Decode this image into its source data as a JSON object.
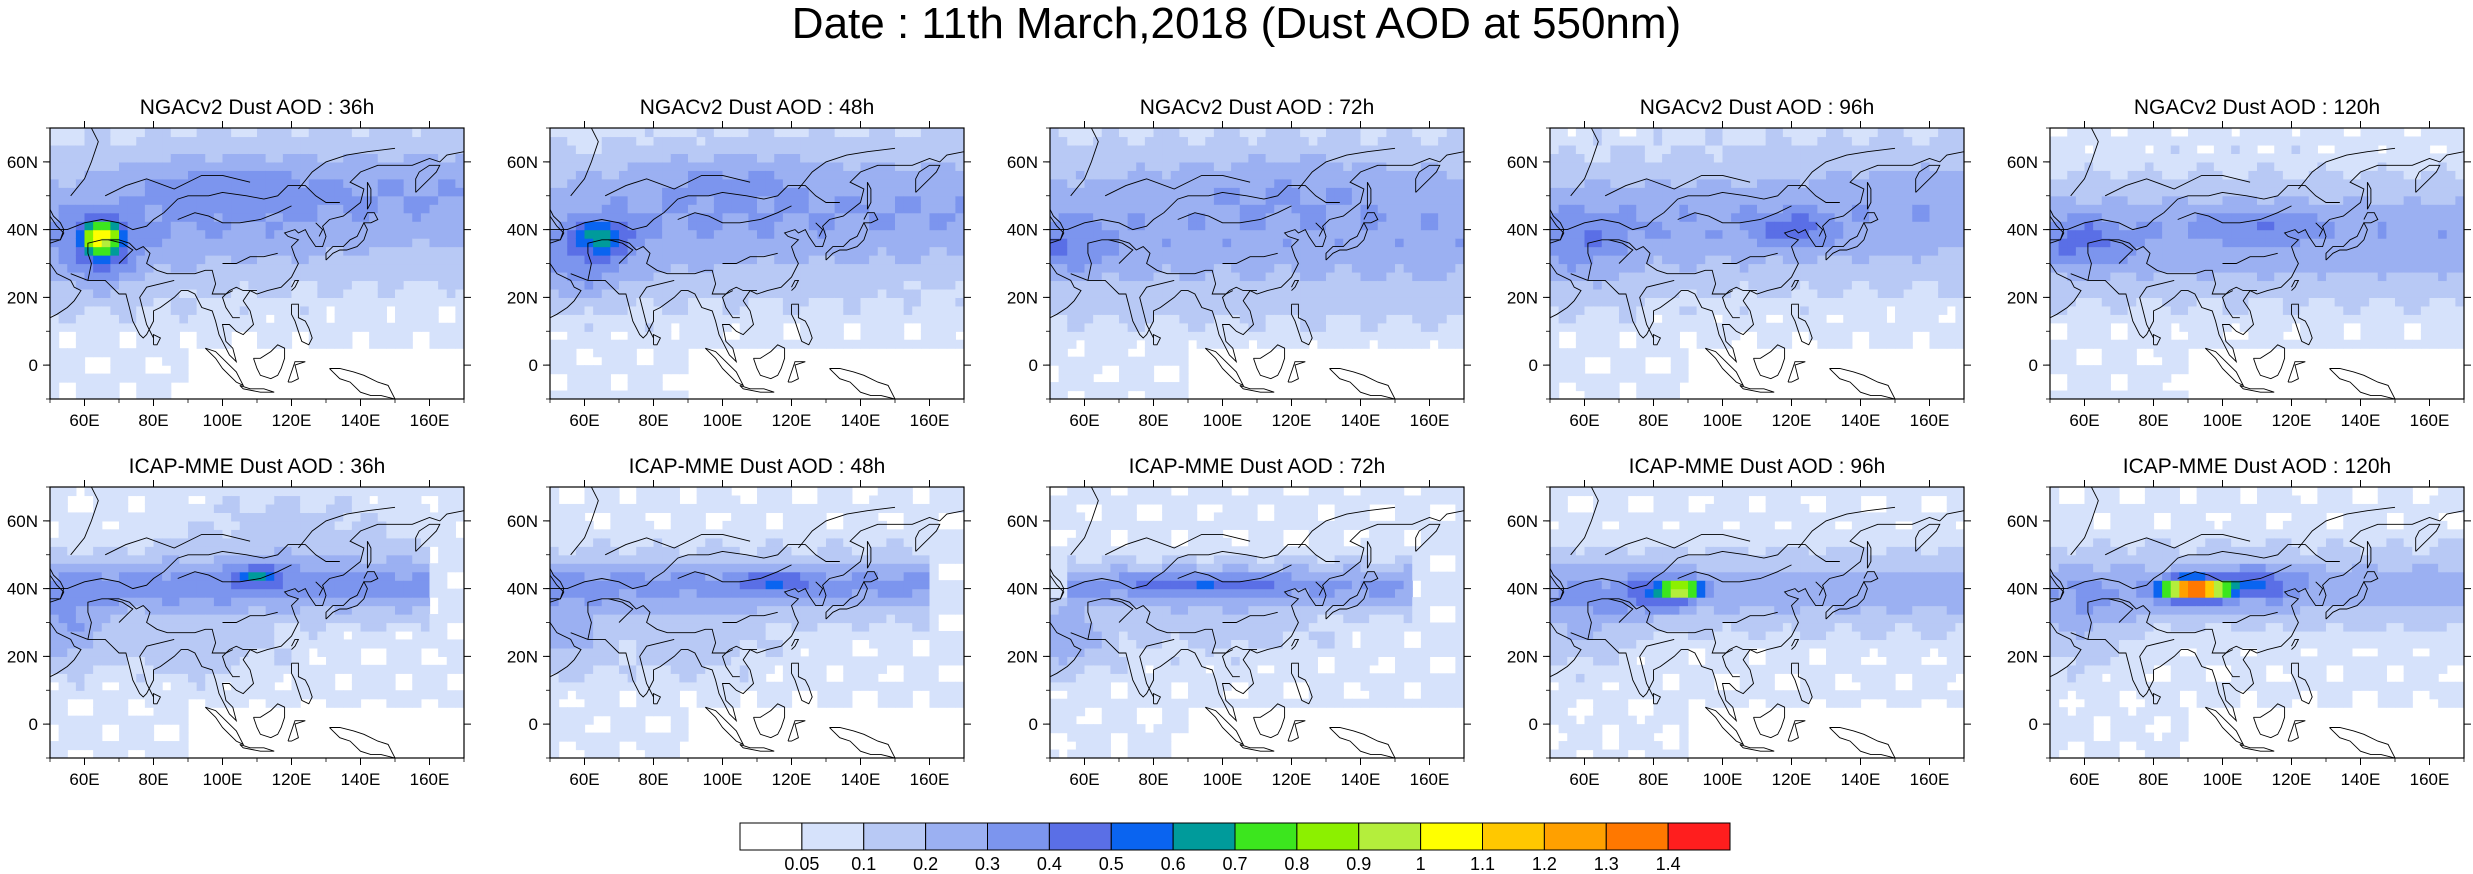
{
  "title": "Date : 11th March,2018 (Dust AOD at 550nm)",
  "colors": {
    "background": "#ffffff",
    "coastline": "#000000",
    "frame": "#000000"
  },
  "map": {
    "lon_range": [
      50,
      170
    ],
    "lat_range": [
      -10,
      70
    ],
    "lon_ticks": [
      "60E",
      "80E",
      "100E",
      "120E",
      "140E",
      "160E"
    ],
    "lat_ticks": [
      "0",
      "20N",
      "40N",
      "60N"
    ]
  },
  "panels": [
    {
      "title": "NGACv2 Dust AOD : 36h",
      "row": 0,
      "col": 0
    },
    {
      "title": "NGACv2 Dust AOD : 48h",
      "row": 0,
      "col": 1
    },
    {
      "title": "NGACv2 Dust AOD : 72h",
      "row": 0,
      "col": 2
    },
    {
      "title": "NGACv2 Dust AOD : 96h",
      "row": 0,
      "col": 3
    },
    {
      "title": "NGACv2 Dust AOD : 120h",
      "row": 0,
      "col": 4
    },
    {
      "title": "ICAP-MME Dust AOD : 36h",
      "row": 1,
      "col": 0
    },
    {
      "title": "ICAP-MME Dust AOD : 48h",
      "row": 1,
      "col": 1
    },
    {
      "title": "ICAP-MME Dust AOD : 72h",
      "row": 1,
      "col": 2
    },
    {
      "title": "ICAP-MME Dust AOD : 96h",
      "row": 1,
      "col": 3
    },
    {
      "title": "ICAP-MME Dust AOD : 120h",
      "row": 1,
      "col": 4
    }
  ],
  "colorbar": {
    "labels": [
      "0.05",
      "0.1",
      "0.2",
      "0.3",
      "0.4",
      "0.5",
      "0.6",
      "0.7",
      "0.8",
      "0.9",
      "1",
      "1.1",
      "1.2",
      "1.3",
      "1.4"
    ],
    "colors": [
      "#ffffff",
      "#d6e2fb",
      "#b8c9f5",
      "#9bb0f2",
      "#7c95ee",
      "#5a6fe6",
      "#0a64f0",
      "#009b9b",
      "#3ce61e",
      "#8cf000",
      "#b4ee3c",
      "#ffff00",
      "#ffc800",
      "#ffa000",
      "#ff7800",
      "#ff1e1e"
    ]
  }
}
